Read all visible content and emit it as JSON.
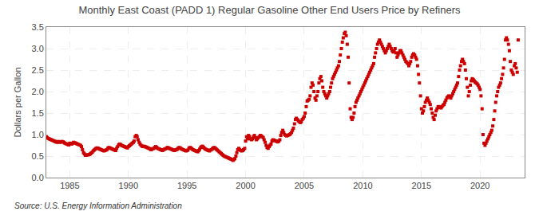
{
  "chart_data": {
    "type": "scatter",
    "title": "Monthly East Coast (PADD 1) Regular Gasoline Other End Users Price by Refiners",
    "ylabel": "Dollars per Gallon",
    "annotations": [
      "Source: U.S. Energy Information Administration"
    ],
    "color": "#cc0000",
    "marker": "square",
    "grid": true,
    "xlim": [
      1983.0,
      2023.8
    ],
    "xticks": [
      1985,
      1990,
      1995,
      2000,
      2005,
      2010,
      2015,
      2020
    ],
    "ylim": [
      0.0,
      3.5
    ],
    "yticks": [
      {
        "value": 0.0,
        "label": "0.0"
      },
      0.5,
      {
        "value": 1.0,
        "label": "1.0"
      },
      1.5,
      {
        "value": 2.0,
        "label": "2.0"
      },
      2.5,
      {
        "value": 3.0,
        "label": "3.0"
      },
      3.5
    ],
    "x": [
      1983.0,
      1983.08,
      1983.17,
      1983.25,
      1983.33,
      1983.42,
      1983.5,
      1983.58,
      1983.67,
      1983.75,
      1983.83,
      1983.92,
      1984.0,
      1984.08,
      1984.17,
      1984.25,
      1984.33,
      1984.42,
      1984.5,
      1984.58,
      1984.67,
      1984.75,
      1984.83,
      1984.92,
      1985.0,
      1985.08,
      1985.17,
      1985.25,
      1985.33,
      1985.42,
      1985.5,
      1985.58,
      1985.67,
      1985.75,
      1985.83,
      1985.92,
      1986.0,
      1986.08,
      1986.17,
      1986.25,
      1986.33,
      1986.42,
      1986.5,
      1986.58,
      1986.67,
      1986.75,
      1986.83,
      1986.92,
      1987.0,
      1987.08,
      1987.17,
      1987.25,
      1987.33,
      1987.42,
      1987.5,
      1987.58,
      1987.67,
      1987.75,
      1987.83,
      1987.92,
      1988.0,
      1988.08,
      1988.17,
      1988.25,
      1988.33,
      1988.42,
      1988.5,
      1988.58,
      1988.67,
      1988.75,
      1988.83,
      1988.92,
      1989.0,
      1989.08,
      1989.17,
      1989.25,
      1989.33,
      1989.42,
      1989.5,
      1989.58,
      1989.67,
      1989.75,
      1989.83,
      1989.92,
      1990.0,
      1990.08,
      1990.17,
      1990.25,
      1990.33,
      1990.42,
      1990.5,
      1990.58,
      1990.67,
      1990.75,
      1990.83,
      1990.92,
      1991.0,
      1991.08,
      1991.17,
      1991.25,
      1991.33,
      1991.42,
      1991.5,
      1991.58,
      1991.67,
      1991.75,
      1991.83,
      1991.92,
      1992.0,
      1992.08,
      1992.17,
      1992.25,
      1992.33,
      1992.42,
      1992.5,
      1992.58,
      1992.67,
      1992.75,
      1992.83,
      1992.92,
      1993.0,
      1993.08,
      1993.17,
      1993.25,
      1993.33,
      1993.42,
      1993.5,
      1993.58,
      1993.67,
      1993.75,
      1993.83,
      1993.92,
      1994.0,
      1994.08,
      1994.17,
      1994.25,
      1994.33,
      1994.42,
      1994.5,
      1994.58,
      1994.67,
      1994.75,
      1994.83,
      1994.92,
      1995.0,
      1995.08,
      1995.17,
      1995.25,
      1995.33,
      1995.42,
      1995.5,
      1995.58,
      1995.67,
      1995.75,
      1995.83,
      1995.92,
      1996.0,
      1996.08,
      1996.17,
      1996.25,
      1996.33,
      1996.42,
      1996.5,
      1996.58,
      1996.67,
      1996.75,
      1996.83,
      1996.92,
      1997.0,
      1997.08,
      1997.17,
      1997.25,
      1997.33,
      1997.42,
      1997.5,
      1997.58,
      1997.67,
      1997.75,
      1997.83,
      1997.92,
      1998.0,
      1998.08,
      1998.17,
      1998.25,
      1998.33,
      1998.42,
      1998.5,
      1998.58,
      1998.67,
      1998.75,
      1998.83,
      1998.92,
      1999.0,
      1999.08,
      1999.17,
      1999.25,
      1999.33,
      1999.42,
      1999.5,
      1999.58,
      1999.67,
      1999.75,
      1999.83,
      1999.92,
      2000.0,
      2000.08,
      2000.17,
      2000.25,
      2000.33,
      2000.42,
      2000.5,
      2000.58,
      2000.67,
      2000.75,
      2000.83,
      2000.92,
      2001.0,
      2001.08,
      2001.17,
      2001.25,
      2001.33,
      2001.42,
      2001.5,
      2001.58,
      2001.67,
      2001.75,
      2001.83,
      2001.92,
      2002.0,
      2002.08,
      2002.17,
      2002.25,
      2002.33,
      2002.42,
      2002.5,
      2002.58,
      2002.67,
      2002.75,
      2002.83,
      2002.92,
      2003.0,
      2003.08,
      2003.17,
      2003.25,
      2003.33,
      2003.42,
      2003.5,
      2003.58,
      2003.67,
      2003.75,
      2003.83,
      2003.92,
      2004.0,
      2004.08,
      2004.17,
      2004.25,
      2004.33,
      2004.42,
      2004.5,
      2004.58,
      2004.67,
      2004.75,
      2004.83,
      2004.92,
      2005.0,
      2005.08,
      2005.17,
      2005.25,
      2005.33,
      2005.42,
      2005.5,
      2005.58,
      2005.67,
      2005.75,
      2005.83,
      2005.92,
      2006.0,
      2006.08,
      2006.17,
      2006.25,
      2006.33,
      2006.42,
      2006.5,
      2006.58,
      2006.67,
      2006.75,
      2006.83,
      2006.92,
      2007.0,
      2007.08,
      2007.17,
      2007.25,
      2007.33,
      2007.42,
      2007.5,
      2007.58,
      2007.67,
      2007.75,
      2007.83,
      2007.92,
      2008.0,
      2008.08,
      2008.17,
      2008.25,
      2008.33,
      2008.42,
      2008.5,
      2008.58,
      2008.67,
      2008.75,
      2008.83,
      2008.92,
      2009.0,
      2009.08,
      2009.17,
      2009.25,
      2009.33,
      2009.42,
      2009.5,
      2009.58,
      2009.67,
      2009.75,
      2009.83,
      2009.92,
      2010.0,
      2010.08,
      2010.17,
      2010.25,
      2010.33,
      2010.42,
      2010.5,
      2010.58,
      2010.67,
      2010.75,
      2010.83,
      2010.92,
      2011.0,
      2011.08,
      2011.17,
      2011.25,
      2011.33,
      2011.42,
      2011.5,
      2011.58,
      2011.67,
      2011.75,
      2011.83,
      2011.92,
      2012.0,
      2012.08,
      2012.17,
      2012.25,
      2012.33,
      2012.42,
      2012.5,
      2012.58,
      2012.67,
      2012.75,
      2012.83,
      2012.92,
      2013.0,
      2013.08,
      2013.17,
      2013.25,
      2013.33,
      2013.42,
      2013.5,
      2013.58,
      2013.67,
      2013.75,
      2013.83,
      2013.92,
      2014.0,
      2014.08,
      2014.17,
      2014.25,
      2014.33,
      2014.42,
      2014.5,
      2014.58,
      2014.67,
      2014.75,
      2014.83,
      2014.92,
      2015.0,
      2015.08,
      2015.17,
      2015.25,
      2015.33,
      2015.42,
      2015.5,
      2015.58,
      2015.67,
      2015.75,
      2015.83,
      2015.92,
      2016.0,
      2016.08,
      2016.17,
      2016.25,
      2016.33,
      2016.42,
      2016.5,
      2016.58,
      2016.67,
      2016.75,
      2016.83,
      2016.92,
      2017.0,
      2017.08,
      2017.17,
      2017.25,
      2017.33,
      2017.42,
      2017.5,
      2017.58,
      2017.67,
      2017.75,
      2017.83,
      2017.92,
      2018.0,
      2018.08,
      2018.17,
      2018.25,
      2018.33,
      2018.42,
      2018.5,
      2018.58,
      2018.67,
      2018.75,
      2018.83,
      2018.92,
      2019.0,
      2019.08,
      2019.17,
      2019.25,
      2019.33,
      2019.42,
      2019.5,
      2019.58,
      2019.67,
      2019.75,
      2019.83,
      2019.92,
      2020.0,
      2020.08,
      2020.17,
      2020.25,
      2020.33,
      2020.42,
      2020.5,
      2020.58,
      2020.67,
      2020.75,
      2020.83,
      2020.92,
      2021.0,
      2021.08,
      2021.17,
      2021.25,
      2021.33,
      2021.42,
      2021.5,
      2021.58,
      2021.67,
      2021.75,
      2021.83,
      2021.92,
      2022.0,
      2022.08,
      2022.17,
      2022.25,
      2022.33,
      2022.42,
      2022.5,
      2022.58,
      2022.67,
      2022.75,
      2022.83,
      2022.92,
      2023.0,
      2023.08,
      2023.17,
      2023.25
    ],
    "values": [
      0.95,
      0.93,
      0.91,
      0.9,
      0.89,
      0.88,
      0.87,
      0.86,
      0.85,
      0.84,
      0.83,
      0.82,
      0.84,
      0.83,
      0.82,
      0.83,
      0.84,
      0.83,
      0.82,
      0.8,
      0.79,
      0.78,
      0.77,
      0.76,
      0.8,
      0.79,
      0.78,
      0.8,
      0.82,
      0.81,
      0.8,
      0.79,
      0.78,
      0.77,
      0.76,
      0.75,
      0.72,
      0.65,
      0.58,
      0.55,
      0.52,
      0.52,
      0.53,
      0.53,
      0.54,
      0.55,
      0.57,
      0.59,
      0.62,
      0.64,
      0.66,
      0.68,
      0.69,
      0.68,
      0.67,
      0.66,
      0.65,
      0.64,
      0.63,
      0.62,
      0.63,
      0.64,
      0.65,
      0.68,
      0.7,
      0.69,
      0.68,
      0.67,
      0.66,
      0.65,
      0.64,
      0.63,
      0.68,
      0.72,
      0.76,
      0.78,
      0.77,
      0.75,
      0.74,
      0.73,
      0.72,
      0.71,
      0.7,
      0.69,
      0.72,
      0.74,
      0.76,
      0.78,
      0.8,
      0.82,
      0.85,
      0.95,
      0.98,
      0.95,
      0.88,
      0.82,
      0.78,
      0.75,
      0.73,
      0.72,
      0.73,
      0.72,
      0.71,
      0.7,
      0.69,
      0.68,
      0.67,
      0.65,
      0.66,
      0.67,
      0.68,
      0.7,
      0.72,
      0.7,
      0.68,
      0.67,
      0.66,
      0.65,
      0.64,
      0.63,
      0.65,
      0.66,
      0.67,
      0.68,
      0.7,
      0.69,
      0.68,
      0.67,
      0.66,
      0.65,
      0.64,
      0.63,
      0.64,
      0.65,
      0.66,
      0.68,
      0.7,
      0.69,
      0.67,
      0.66,
      0.65,
      0.64,
      0.63,
      0.62,
      0.63,
      0.64,
      0.68,
      0.7,
      0.69,
      0.67,
      0.65,
      0.64,
      0.63,
      0.62,
      0.61,
      0.6,
      0.63,
      0.66,
      0.7,
      0.72,
      0.73,
      0.7,
      0.68,
      0.66,
      0.65,
      0.64,
      0.63,
      0.62,
      0.64,
      0.65,
      0.67,
      0.69,
      0.7,
      0.68,
      0.66,
      0.64,
      0.62,
      0.6,
      0.58,
      0.56,
      0.54,
      0.52,
      0.5,
      0.49,
      0.48,
      0.47,
      0.46,
      0.45,
      0.44,
      0.43,
      0.42,
      0.4,
      0.42,
      0.44,
      0.5,
      0.58,
      0.65,
      0.68,
      0.65,
      0.63,
      0.62,
      0.63,
      0.65,
      0.68,
      0.85,
      0.95,
      0.9,
      0.98,
      0.95,
      0.9,
      0.88,
      0.9,
      0.95,
      0.98,
      0.93,
      0.88,
      0.9,
      0.93,
      0.95,
      0.98,
      0.97,
      0.95,
      0.93,
      0.88,
      0.82,
      0.75,
      0.7,
      0.68,
      0.72,
      0.75,
      0.78,
      0.85,
      0.88,
      0.87,
      0.86,
      0.85,
      0.84,
      0.83,
      0.85,
      0.88,
      0.98,
      1.05,
      1.1,
      1.05,
      1.0,
      0.98,
      0.97,
      0.98,
      0.99,
      1.0,
      1.02,
      1.05,
      1.1,
      1.15,
      1.25,
      1.35,
      1.38,
      1.35,
      1.32,
      1.3,
      1.28,
      1.3,
      1.35,
      1.38,
      1.42,
      1.5,
      1.65,
      1.78,
      1.8,
      1.82,
      1.9,
      2.1,
      2.2,
      2.15,
      2.0,
      1.85,
      1.8,
      1.9,
      2.0,
      2.2,
      2.3,
      2.35,
      2.25,
      2.1,
      2.0,
      1.95,
      1.9,
      1.85,
      1.9,
      1.95,
      2.0,
      2.1,
      2.2,
      2.3,
      2.35,
      2.4,
      2.45,
      2.5,
      2.55,
      2.6,
      2.7,
      2.85,
      3.0,
      3.15,
      3.25,
      3.35,
      3.38,
      3.3,
      3.1,
      2.8,
      2.2,
      1.6,
      1.4,
      1.35,
      1.4,
      1.5,
      1.65,
      1.75,
      1.8,
      1.85,
      1.9,
      1.95,
      2.0,
      2.05,
      2.1,
      2.15,
      2.2,
      2.25,
      2.3,
      2.35,
      2.4,
      2.45,
      2.5,
      2.55,
      2.6,
      2.65,
      2.8,
      2.9,
      3.0,
      3.1,
      3.15,
      3.2,
      3.15,
      3.1,
      3.05,
      3.0,
      2.95,
      2.9,
      2.95,
      3.0,
      3.05,
      3.1,
      3.05,
      3.0,
      2.95,
      2.92,
      2.95,
      3.0,
      2.9,
      2.8,
      2.85,
      2.9,
      2.95,
      2.95,
      2.9,
      2.85,
      2.8,
      2.75,
      2.7,
      2.68,
      2.65,
      2.6,
      2.65,
      2.7,
      2.8,
      2.85,
      2.88,
      2.85,
      2.8,
      2.75,
      2.6,
      2.4,
      2.2,
      1.9,
      1.6,
      1.5,
      1.55,
      1.65,
      1.75,
      1.8,
      1.85,
      1.8,
      1.75,
      1.7,
      1.6,
      1.5,
      1.4,
      1.35,
      1.45,
      1.55,
      1.6,
      1.65,
      1.65,
      1.63,
      1.62,
      1.65,
      1.68,
      1.7,
      1.75,
      1.8,
      1.85,
      1.88,
      1.9,
      1.88,
      1.85,
      1.9,
      1.95,
      2.0,
      2.05,
      2.1,
      2.15,
      2.2,
      2.35,
      2.5,
      2.6,
      2.7,
      2.75,
      2.7,
      2.65,
      2.5,
      2.3,
      2.1,
      1.9,
      2.0,
      2.15,
      2.25,
      2.3,
      2.28,
      2.25,
      2.22,
      2.2,
      2.18,
      2.15,
      2.1,
      2.05,
      1.9,
      1.6,
      1.0,
      0.8,
      0.75,
      0.8,
      0.85,
      0.9,
      0.95,
      1.0,
      1.05,
      1.1,
      1.2,
      1.35,
      1.55,
      1.75,
      1.9,
      2.0,
      2.1,
      2.15,
      2.2,
      2.3,
      2.4,
      2.55,
      2.75,
      3.2,
      3.25,
      3.2,
      3.1,
      2.95,
      2.7,
      2.5,
      2.45,
      2.4,
      2.6,
      2.65,
      2.55,
      2.45,
      3.2
    ]
  }
}
